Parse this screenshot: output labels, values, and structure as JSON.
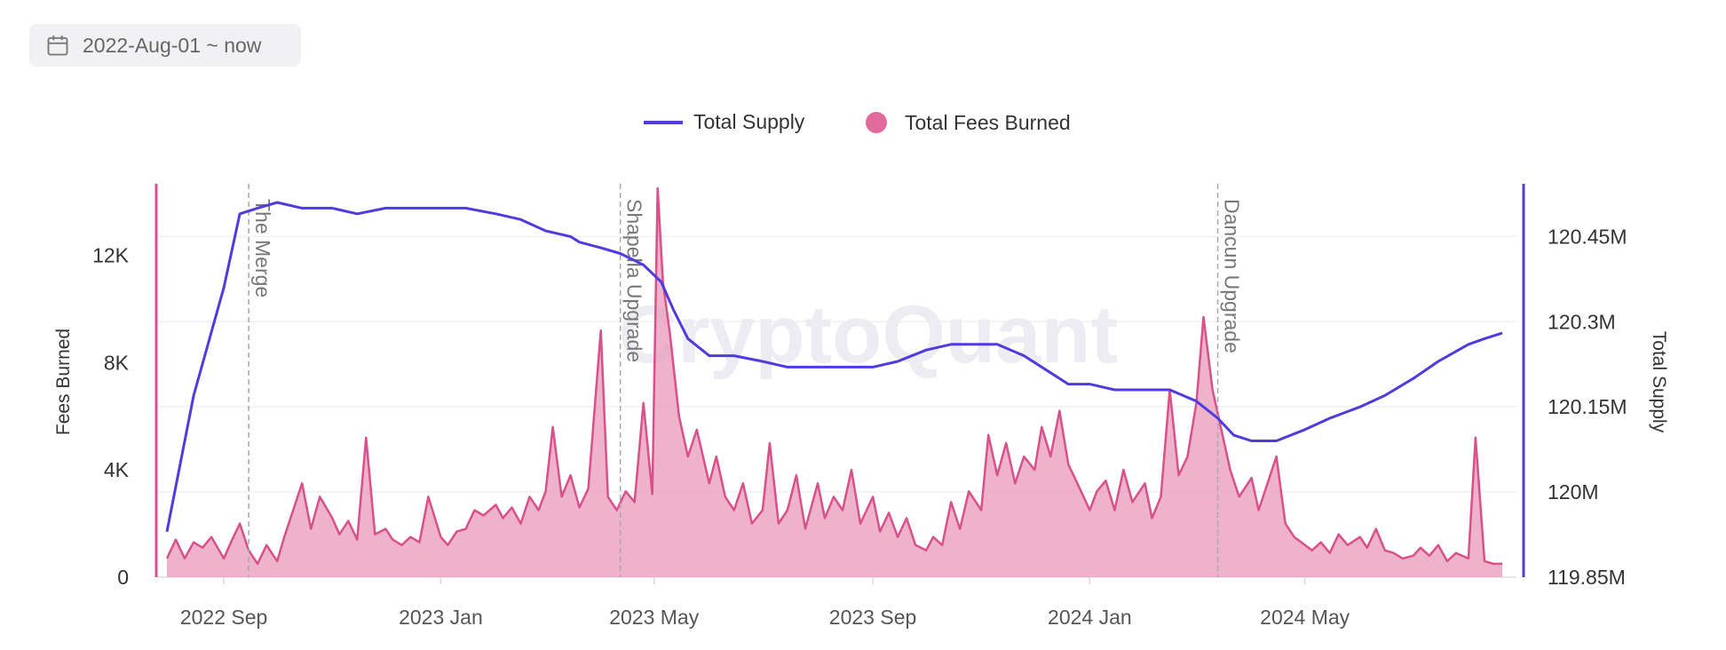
{
  "date_filter": {
    "label": "2022-Aug-01 ~ now",
    "icon": "calendar-icon"
  },
  "watermark": "CryptoQuant",
  "colors": {
    "supply": "#4f3be0",
    "fees": "#d9508a",
    "fees_fill": "#e89ab9"
  },
  "chart_data": {
    "type": "area",
    "legend": [
      {
        "name": "Total Supply",
        "marker": "line",
        "color": "#4f3be0"
      },
      {
        "name": "Total Fees Burned",
        "marker": "circle",
        "color": "#d9508a"
      }
    ],
    "x_ticks": [
      "2022 Sep",
      "2023 Jan",
      "2023 May",
      "2023 Sep",
      "2024 Jan",
      "2024 May"
    ],
    "x_tick_dates": [
      "2022-09-01",
      "2023-01-01",
      "2023-05-01",
      "2023-09-01",
      "2024-01-01",
      "2024-05-01"
    ],
    "x_range": [
      "2022-07-26",
      "2024-08-28"
    ],
    "y_left": {
      "label": "Fees Burned",
      "ticks": [
        "0",
        "4K",
        "8K",
        "12K"
      ],
      "tick_values": [
        0,
        4000,
        8000,
        12000
      ],
      "range": [
        0,
        14500
      ]
    },
    "y_right": {
      "label": "Total Supply",
      "ticks": [
        "119.85M",
        "120M",
        "120.15M",
        "120.3M",
        "120.45M"
      ],
      "tick_values": [
        119.85,
        120.0,
        120.15,
        120.3,
        120.45
      ],
      "range": [
        119.85,
        120.535
      ]
    },
    "annotations": [
      {
        "label": "The Merge",
        "date": "2022-09-15"
      },
      {
        "label": "Shapella Upgrade",
        "date": "2023-04-12"
      },
      {
        "label": "Dancun Upgrade",
        "date": "2024-03-13"
      }
    ],
    "series": [
      {
        "name": "Total Supply",
        "axis": "right",
        "unit": "M",
        "points": [
          [
            "2022-07-31",
            119.93
          ],
          [
            "2022-08-15",
            120.17
          ],
          [
            "2022-09-01",
            120.36
          ],
          [
            "2022-09-10",
            120.49
          ],
          [
            "2022-09-20",
            120.5
          ],
          [
            "2022-10-01",
            120.51
          ],
          [
            "2022-10-15",
            120.5
          ],
          [
            "2022-11-01",
            120.5
          ],
          [
            "2022-11-15",
            120.49
          ],
          [
            "2022-12-01",
            120.5
          ],
          [
            "2022-12-15",
            120.5
          ],
          [
            "2023-01-01",
            120.5
          ],
          [
            "2023-01-15",
            120.5
          ],
          [
            "2023-02-01",
            120.49
          ],
          [
            "2023-02-15",
            120.48
          ],
          [
            "2023-03-01",
            120.46
          ],
          [
            "2023-03-15",
            120.45
          ],
          [
            "2023-03-20",
            120.44
          ],
          [
            "2023-04-01",
            120.43
          ],
          [
            "2023-04-12",
            120.42
          ],
          [
            "2023-04-25",
            120.4
          ],
          [
            "2023-05-05",
            120.37
          ],
          [
            "2023-05-12",
            120.32
          ],
          [
            "2023-05-20",
            120.27
          ],
          [
            "2023-06-01",
            120.24
          ],
          [
            "2023-06-15",
            120.24
          ],
          [
            "2023-07-01",
            120.23
          ],
          [
            "2023-07-15",
            120.22
          ],
          [
            "2023-08-01",
            120.22
          ],
          [
            "2023-08-15",
            120.22
          ],
          [
            "2023-09-01",
            120.22
          ],
          [
            "2023-09-15",
            120.23
          ],
          [
            "2023-10-01",
            120.25
          ],
          [
            "2023-10-15",
            120.26
          ],
          [
            "2023-11-01",
            120.26
          ],
          [
            "2023-11-10",
            120.26
          ],
          [
            "2023-11-25",
            120.24
          ],
          [
            "2023-12-10",
            120.21
          ],
          [
            "2023-12-20",
            120.19
          ],
          [
            "2024-01-01",
            120.19
          ],
          [
            "2024-01-15",
            120.18
          ],
          [
            "2024-02-01",
            120.18
          ],
          [
            "2024-02-15",
            120.18
          ],
          [
            "2024-03-01",
            120.16
          ],
          [
            "2024-03-13",
            120.13
          ],
          [
            "2024-03-22",
            120.1
          ],
          [
            "2024-04-01",
            120.09
          ],
          [
            "2024-04-15",
            120.09
          ],
          [
            "2024-05-01",
            120.11
          ],
          [
            "2024-05-15",
            120.13
          ],
          [
            "2024-06-01",
            120.15
          ],
          [
            "2024-06-15",
            120.17
          ],
          [
            "2024-07-01",
            120.2
          ],
          [
            "2024-07-15",
            120.23
          ],
          [
            "2024-08-01",
            120.26
          ],
          [
            "2024-08-10",
            120.27
          ],
          [
            "2024-08-20",
            120.28
          ]
        ]
      },
      {
        "name": "Total Fees Burned",
        "axis": "left",
        "points": [
          [
            "2022-07-31",
            700
          ],
          [
            "2022-08-05",
            1400
          ],
          [
            "2022-08-10",
            700
          ],
          [
            "2022-08-15",
            1300
          ],
          [
            "2022-08-20",
            1100
          ],
          [
            "2022-08-25",
            1500
          ],
          [
            "2022-09-01",
            700
          ],
          [
            "2022-09-05",
            1300
          ],
          [
            "2022-09-10",
            2000
          ],
          [
            "2022-09-15",
            1000
          ],
          [
            "2022-09-20",
            500
          ],
          [
            "2022-09-25",
            1200
          ],
          [
            "2022-10-01",
            600
          ],
          [
            "2022-10-05",
            1500
          ],
          [
            "2022-10-10",
            2500
          ],
          [
            "2022-10-15",
            3500
          ],
          [
            "2022-10-20",
            1800
          ],
          [
            "2022-10-25",
            3000
          ],
          [
            "2022-11-01",
            2200
          ],
          [
            "2022-11-05",
            1600
          ],
          [
            "2022-11-10",
            2100
          ],
          [
            "2022-11-15",
            1400
          ],
          [
            "2022-11-20",
            5200
          ],
          [
            "2022-11-25",
            1600
          ],
          [
            "2022-12-01",
            1800
          ],
          [
            "2022-12-05",
            1400
          ],
          [
            "2022-12-10",
            1200
          ],
          [
            "2022-12-15",
            1500
          ],
          [
            "2022-12-20",
            1300
          ],
          [
            "2022-12-25",
            3000
          ],
          [
            "2023-01-01",
            1500
          ],
          [
            "2023-01-05",
            1200
          ],
          [
            "2023-01-10",
            1700
          ],
          [
            "2023-01-15",
            1800
          ],
          [
            "2023-01-20",
            2500
          ],
          [
            "2023-01-25",
            2300
          ],
          [
            "2023-02-01",
            2700
          ],
          [
            "2023-02-05",
            2200
          ],
          [
            "2023-02-10",
            2600
          ],
          [
            "2023-02-15",
            2000
          ],
          [
            "2023-02-20",
            3000
          ],
          [
            "2023-02-25",
            2500
          ],
          [
            "2023-03-01",
            3200
          ],
          [
            "2023-03-05",
            5600
          ],
          [
            "2023-03-10",
            3000
          ],
          [
            "2023-03-15",
            3800
          ],
          [
            "2023-03-20",
            2600
          ],
          [
            "2023-03-25",
            3300
          ],
          [
            "2023-04-01",
            9200
          ],
          [
            "2023-04-05",
            3000
          ],
          [
            "2023-04-10",
            2500
          ],
          [
            "2023-04-15",
            3200
          ],
          [
            "2023-04-20",
            2800
          ],
          [
            "2023-04-25",
            6500
          ],
          [
            "2023-04-30",
            3100
          ],
          [
            "2023-05-03",
            14500
          ],
          [
            "2023-05-06",
            11000
          ],
          [
            "2023-05-10",
            9000
          ],
          [
            "2023-05-15",
            6000
          ],
          [
            "2023-05-20",
            4500
          ],
          [
            "2023-05-25",
            5500
          ],
          [
            "2023-06-01",
            3500
          ],
          [
            "2023-06-05",
            4500
          ],
          [
            "2023-06-10",
            3000
          ],
          [
            "2023-06-15",
            2500
          ],
          [
            "2023-06-20",
            3500
          ],
          [
            "2023-06-25",
            2000
          ],
          [
            "2023-07-01",
            2500
          ],
          [
            "2023-07-05",
            5000
          ],
          [
            "2023-07-10",
            2000
          ],
          [
            "2023-07-15",
            2500
          ],
          [
            "2023-07-20",
            3800
          ],
          [
            "2023-07-25",
            1800
          ],
          [
            "2023-08-01",
            3500
          ],
          [
            "2023-08-05",
            2200
          ],
          [
            "2023-08-10",
            3000
          ],
          [
            "2023-08-15",
            2500
          ],
          [
            "2023-08-20",
            4000
          ],
          [
            "2023-08-25",
            2000
          ],
          [
            "2023-09-01",
            3000
          ],
          [
            "2023-09-05",
            1700
          ],
          [
            "2023-09-10",
            2400
          ],
          [
            "2023-09-15",
            1500
          ],
          [
            "2023-09-20",
            2200
          ],
          [
            "2023-09-25",
            1200
          ],
          [
            "2023-10-01",
            1000
          ],
          [
            "2023-10-05",
            1500
          ],
          [
            "2023-10-10",
            1200
          ],
          [
            "2023-10-15",
            2800
          ],
          [
            "2023-10-20",
            1800
          ],
          [
            "2023-10-25",
            3200
          ],
          [
            "2023-11-01",
            2500
          ],
          [
            "2023-11-05",
            5300
          ],
          [
            "2023-11-10",
            3800
          ],
          [
            "2023-11-15",
            5000
          ],
          [
            "2023-11-20",
            3500
          ],
          [
            "2023-11-25",
            4500
          ],
          [
            "2023-12-01",
            4000
          ],
          [
            "2023-12-05",
            5600
          ],
          [
            "2023-12-10",
            4500
          ],
          [
            "2023-12-15",
            6200
          ],
          [
            "2023-12-20",
            4200
          ],
          [
            "2023-12-25",
            3500
          ],
          [
            "2024-01-01",
            2500
          ],
          [
            "2024-01-05",
            3200
          ],
          [
            "2024-01-10",
            3600
          ],
          [
            "2024-01-15",
            2500
          ],
          [
            "2024-01-20",
            4000
          ],
          [
            "2024-01-25",
            2800
          ],
          [
            "2024-02-01",
            3500
          ],
          [
            "2024-02-05",
            2200
          ],
          [
            "2024-02-10",
            3000
          ],
          [
            "2024-02-15",
            7000
          ],
          [
            "2024-02-20",
            3800
          ],
          [
            "2024-02-25",
            4500
          ],
          [
            "2024-03-01",
            6500
          ],
          [
            "2024-03-05",
            9700
          ],
          [
            "2024-03-10",
            7000
          ],
          [
            "2024-03-15",
            5500
          ],
          [
            "2024-03-20",
            4000
          ],
          [
            "2024-03-25",
            3000
          ],
          [
            "2024-04-01",
            3700
          ],
          [
            "2024-04-05",
            2500
          ],
          [
            "2024-04-10",
            3500
          ],
          [
            "2024-04-15",
            4500
          ],
          [
            "2024-04-20",
            2000
          ],
          [
            "2024-04-25",
            1500
          ],
          [
            "2024-05-01",
            1200
          ],
          [
            "2024-05-05",
            1000
          ],
          [
            "2024-05-10",
            1300
          ],
          [
            "2024-05-15",
            900
          ],
          [
            "2024-05-20",
            1600
          ],
          [
            "2024-05-25",
            1200
          ],
          [
            "2024-06-01",
            1500
          ],
          [
            "2024-06-05",
            1100
          ],
          [
            "2024-06-10",
            1800
          ],
          [
            "2024-06-15",
            1000
          ],
          [
            "2024-06-20",
            900
          ],
          [
            "2024-06-25",
            700
          ],
          [
            "2024-07-01",
            800
          ],
          [
            "2024-07-05",
            1100
          ],
          [
            "2024-07-10",
            800
          ],
          [
            "2024-07-15",
            1200
          ],
          [
            "2024-07-20",
            600
          ],
          [
            "2024-07-25",
            900
          ],
          [
            "2024-08-01",
            700
          ],
          [
            "2024-08-05",
            5200
          ],
          [
            "2024-08-10",
            600
          ],
          [
            "2024-08-15",
            500
          ],
          [
            "2024-08-20",
            500
          ]
        ]
      }
    ]
  }
}
